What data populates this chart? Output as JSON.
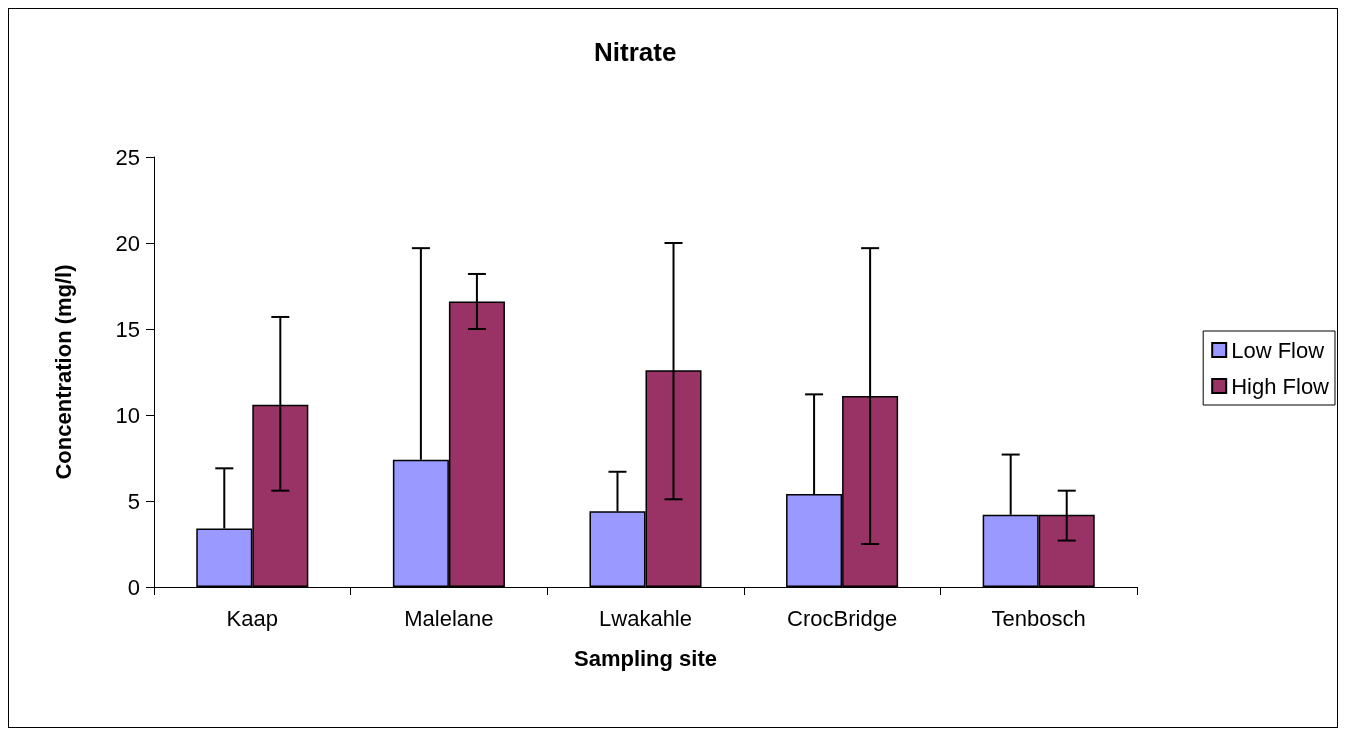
{
  "chart_data": {
    "type": "bar",
    "title": "Nitrate",
    "xlabel": "Sampling site",
    "ylabel": "Concentration (mg/l)",
    "categories": [
      "Kaap",
      "Malelane",
      "Lwakahle",
      "CrocBridge",
      "Tenbosch"
    ],
    "series": [
      {
        "name": "Low Flow",
        "color": "#9999ff",
        "values": [
          3.4,
          7.4,
          4.4,
          5.4,
          4.2
        ],
        "errors": [
          [
            3.4,
            6.9
          ],
          [
            7.4,
            19.7
          ],
          [
            4.4,
            6.7
          ],
          [
            5.4,
            11.2
          ],
          [
            4.2,
            7.7
          ]
        ]
      },
      {
        "name": "High Flow",
        "color": "#993366",
        "values": [
          10.6,
          16.6,
          12.6,
          11.1,
          4.2
        ],
        "errors": [
          [
            5.6,
            15.7
          ],
          [
            15.0,
            18.2
          ],
          [
            5.1,
            20.0
          ],
          [
            2.5,
            19.7
          ],
          [
            2.7,
            5.6
          ]
        ]
      }
    ],
    "ylim": [
      0,
      25
    ],
    "yticks": [
      0,
      5,
      10,
      15,
      20,
      25
    ],
    "grid": false,
    "legend": "right"
  }
}
